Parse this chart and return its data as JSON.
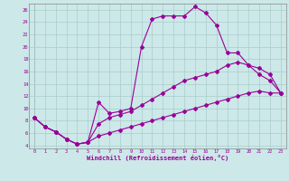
{
  "xlabel": "Windchill (Refroidissement éolien,°C)",
  "xlim": [
    -0.5,
    23.5
  ],
  "ylim": [
    3.5,
    27
  ],
  "yticks": [
    4,
    6,
    8,
    10,
    12,
    14,
    16,
    18,
    20,
    22,
    24,
    26
  ],
  "xticks": [
    0,
    1,
    2,
    3,
    4,
    5,
    6,
    7,
    8,
    9,
    10,
    11,
    12,
    13,
    14,
    15,
    16,
    17,
    18,
    19,
    20,
    21,
    22,
    23
  ],
  "bg_color": "#cce8e8",
  "grid_color": "#aacccc",
  "line_color": "#990099",
  "line1_x": [
    0,
    1,
    2,
    3,
    4,
    5,
    6,
    7,
    8,
    9,
    10,
    11,
    12,
    13,
    14,
    15,
    16,
    17,
    18,
    19,
    20,
    21,
    22,
    23
  ],
  "line1_y": [
    8.5,
    7.0,
    6.2,
    5.0,
    4.2,
    4.5,
    11.0,
    9.2,
    9.5,
    10.0,
    20.0,
    24.5,
    25.0,
    25.0,
    25.0,
    26.5,
    25.5,
    23.5,
    19.0,
    19.0,
    17.0,
    15.5,
    14.5,
    12.5
  ],
  "line2_x": [
    0,
    1,
    2,
    3,
    4,
    5,
    6,
    7,
    8,
    9,
    10,
    11,
    12,
    13,
    14,
    15,
    16,
    17,
    18,
    19,
    20,
    21,
    22,
    23
  ],
  "line2_y": [
    8.5,
    7.0,
    6.2,
    5.0,
    4.2,
    4.5,
    7.5,
    8.5,
    9.0,
    9.5,
    10.5,
    11.5,
    12.5,
    13.5,
    14.5,
    15.0,
    15.5,
    16.0,
    17.0,
    17.5,
    17.0,
    16.5,
    15.5,
    12.5
  ],
  "line3_x": [
    0,
    1,
    2,
    3,
    4,
    5,
    6,
    7,
    8,
    9,
    10,
    11,
    12,
    13,
    14,
    15,
    16,
    17,
    18,
    19,
    20,
    21,
    22,
    23
  ],
  "line3_y": [
    8.5,
    7.0,
    6.2,
    5.0,
    4.2,
    4.5,
    5.5,
    6.0,
    6.5,
    7.0,
    7.5,
    8.0,
    8.5,
    9.0,
    9.5,
    10.0,
    10.5,
    11.0,
    11.5,
    12.0,
    12.5,
    12.8,
    12.5,
    12.5
  ]
}
